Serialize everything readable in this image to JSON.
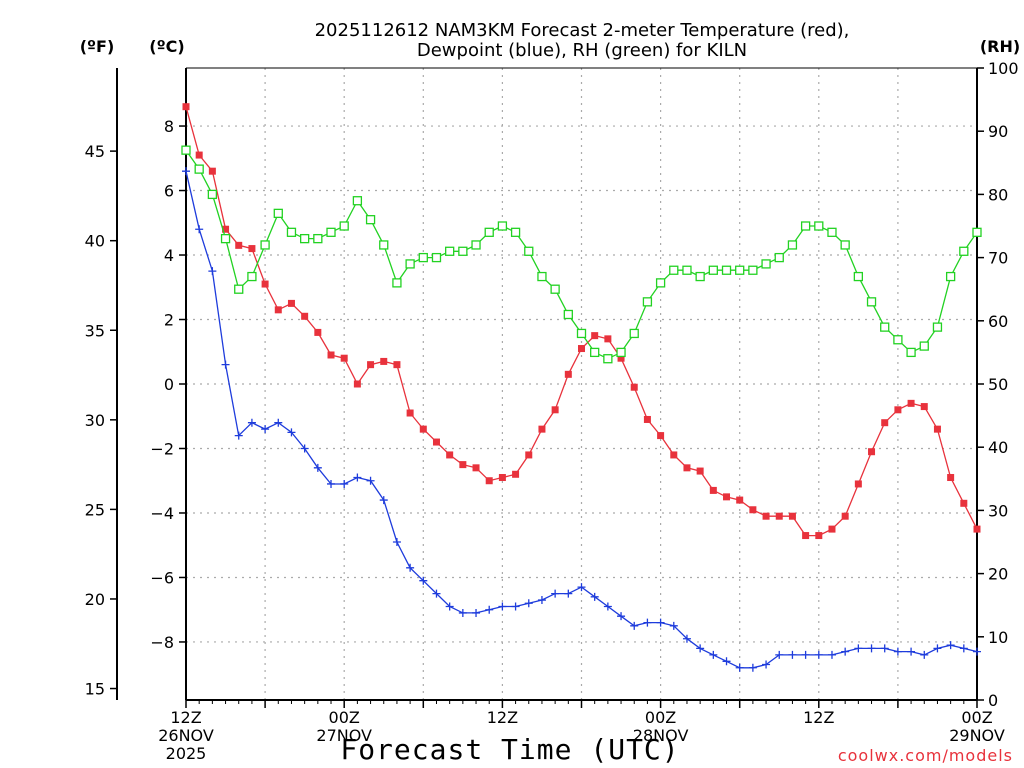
{
  "chart_data": {
    "type": "line",
    "title_lines": [
      "2025112612 NAM3KM Forecast 2-meter Temperature (red),",
      "Dewpoint (blue), RH (green) for KILN"
    ],
    "xlabel": "Forecast Time (UTC)",
    "credit": "coolwx.com/models",
    "units": {
      "fahrenheit": "(ºF)",
      "celsius": "(ºC)",
      "rh": "(RH)"
    },
    "x_range_hours": [
      0,
      60
    ],
    "x_ticks": [
      {
        "hour": 0,
        "lines": [
          "12Z",
          "26NOV",
          "2025"
        ]
      },
      {
        "hour": 12,
        "lines": [
          "00Z",
          "27NOV"
        ]
      },
      {
        "hour": 24,
        "lines": [
          "12Z"
        ]
      },
      {
        "hour": 36,
        "lines": [
          "00Z",
          "28NOV"
        ]
      },
      {
        "hour": 48,
        "lines": [
          "12Z"
        ]
      },
      {
        "hour": 60,
        "lines": [
          "00Z",
          "29NOV"
        ]
      }
    ],
    "y_celsius": {
      "range": [
        -9.8,
        9.8
      ],
      "ticks": [
        -8,
        -6,
        -4,
        -2,
        0,
        2,
        4,
        6,
        8
      ]
    },
    "y_fahrenheit": {
      "ticks": [
        15,
        20,
        25,
        30,
        35,
        40,
        45
      ]
    },
    "y_rh": {
      "range": [
        0,
        100
      ],
      "ticks": [
        0,
        10,
        20,
        30,
        40,
        50,
        60,
        70,
        80,
        90,
        100
      ]
    },
    "series": [
      {
        "name": "Temperature",
        "axis": "celsius",
        "color": "#e8323c",
        "marker": "filled-square",
        "values": [
          8.6,
          7.1,
          6.6,
          4.8,
          4.3,
          4.2,
          3.1,
          2.3,
          2.5,
          2.1,
          1.6,
          0.9,
          0.8,
          0.0,
          0.6,
          0.7,
          0.6,
          -0.9,
          -1.4,
          -1.8,
          -2.2,
          -2.5,
          -2.6,
          -3.0,
          -2.9,
          -2.8,
          -2.2,
          -1.4,
          -0.8,
          0.3,
          1.1,
          1.5,
          1.4,
          0.8,
          -0.1,
          -1.1,
          -1.6,
          -2.2,
          -2.6,
          -2.7,
          -3.3,
          -3.5,
          -3.6,
          -3.9,
          -4.1,
          -4.1,
          -4.1,
          -4.7,
          -4.7,
          -4.5,
          -4.1,
          -3.1,
          -2.1,
          -1.2,
          -0.8,
          -0.6,
          -0.7,
          -1.4,
          -2.9,
          -3.7,
          -4.5
        ]
      },
      {
        "name": "Dewpoint",
        "axis": "celsius",
        "color": "#1e3cdc",
        "marker": "plus",
        "values": [
          6.6,
          4.8,
          3.5,
          0.6,
          -1.6,
          -1.2,
          -1.4,
          -1.2,
          -1.5,
          -2.0,
          -2.6,
          -3.1,
          -3.1,
          -2.9,
          -3.0,
          -3.6,
          -4.9,
          -5.7,
          -6.1,
          -6.5,
          -6.9,
          -7.1,
          -7.1,
          -7.0,
          -6.9,
          -6.9,
          -6.8,
          -6.7,
          -6.5,
          -6.5,
          -6.3,
          -6.6,
          -6.9,
          -7.2,
          -7.5,
          -7.4,
          -7.4,
          -7.5,
          -7.9,
          -8.2,
          -8.4,
          -8.6,
          -8.8,
          -8.8,
          -8.7,
          -8.4,
          -8.4,
          -8.4,
          -8.4,
          -8.4,
          -8.3,
          -8.2,
          -8.2,
          -8.2,
          -8.3,
          -8.3,
          -8.4,
          -8.2,
          -8.1,
          -8.2,
          -8.3
        ]
      },
      {
        "name": "RH",
        "axis": "rh",
        "color": "#22d222",
        "marker": "open-square",
        "values": [
          87,
          84,
          80,
          73,
          65,
          67,
          72,
          77,
          74,
          73,
          73,
          74,
          75,
          79,
          76,
          72,
          66,
          69,
          70,
          70,
          71,
          71,
          72,
          74,
          75,
          74,
          71,
          67,
          65,
          61,
          58,
          55,
          54,
          55,
          58,
          63,
          66,
          68,
          68,
          67,
          68,
          68,
          68,
          68,
          69,
          70,
          72,
          75,
          75,
          74,
          72,
          67,
          63,
          59,
          57,
          55,
          56,
          59,
          67,
          71,
          74
        ]
      }
    ]
  }
}
